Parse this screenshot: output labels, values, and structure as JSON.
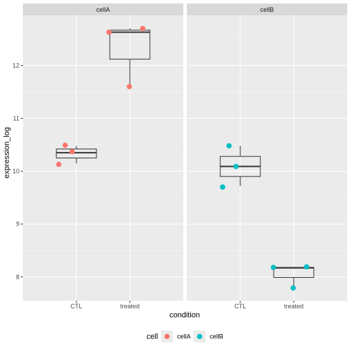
{
  "chart_data": {
    "type": "boxplot",
    "xlabel": "condition",
    "ylabel": "expression_log",
    "ylim": [
      7.55,
      12.95
    ],
    "y_ticks": [
      "8",
      "9",
      "10",
      "11",
      "12"
    ],
    "categories": [
      "CTL",
      "treated"
    ],
    "grid": true,
    "legend": {
      "title": "cell",
      "position": "bottom",
      "entries": [
        {
          "label": "cellA",
          "color": "#F8766D"
        },
        {
          "label": "cellB",
          "color": "#00BFC4"
        }
      ]
    },
    "panels": [
      {
        "strip": "cellA",
        "color": "#F8766D",
        "boxes": [
          {
            "category": "CTL",
            "min": 10.15,
            "q1": 10.25,
            "median": 10.35,
            "q3": 10.42,
            "max": 10.48
          },
          {
            "category": "treated",
            "min": 11.6,
            "q1": 12.12,
            "median": 12.63,
            "q3": 12.67,
            "max": 12.7
          }
        ],
        "points": [
          {
            "category": "CTL",
            "y": 10.13,
            "jitter": -0.33
          },
          {
            "category": "CTL",
            "y": 10.49,
            "jitter": -0.21
          },
          {
            "category": "CTL",
            "y": 10.37,
            "jitter": -0.08
          },
          {
            "category": "treated",
            "y": 12.63,
            "jitter": -0.39
          },
          {
            "category": "treated",
            "y": 11.6,
            "jitter": -0.01
          },
          {
            "category": "treated",
            "y": 12.7,
            "jitter": 0.24
          }
        ]
      },
      {
        "strip": "cellB",
        "color": "#00BFC4",
        "boxes": [
          {
            "category": "CTL",
            "min": 9.72,
            "q1": 9.9,
            "median": 10.09,
            "q3": 10.28,
            "max": 10.48
          },
          {
            "category": "treated",
            "min": 7.8,
            "q1": 7.99,
            "median": 8.17,
            "q3": 8.18,
            "max": 8.19
          }
        ],
        "points": [
          {
            "category": "CTL",
            "y": 9.7,
            "jitter": -0.33
          },
          {
            "category": "CTL",
            "y": 10.48,
            "jitter": -0.21
          },
          {
            "category": "CTL",
            "y": 10.09,
            "jitter": -0.08
          },
          {
            "category": "treated",
            "y": 8.18,
            "jitter": -0.38
          },
          {
            "category": "treated",
            "y": 7.79,
            "jitter": -0.01
          },
          {
            "category": "treated",
            "y": 8.19,
            "jitter": 0.24
          }
        ]
      }
    ]
  }
}
